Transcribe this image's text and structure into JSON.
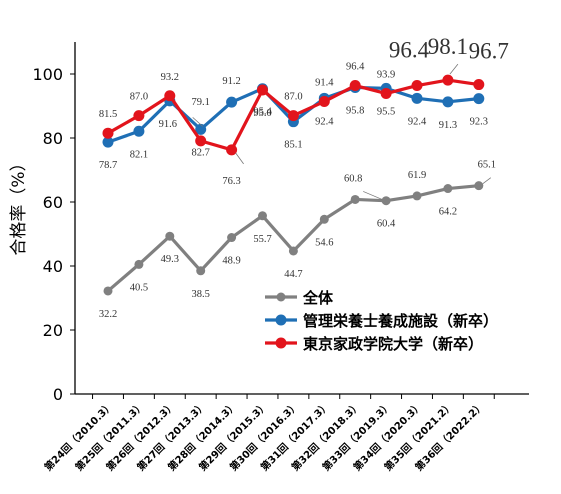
{
  "chart_data": {
    "type": "line",
    "ylabel": "合格率（%）",
    "ylim": [
      0,
      100
    ],
    "yticks": [
      0,
      20,
      40,
      60,
      80,
      100
    ],
    "grid": false,
    "legend_position": "bottom-right-inside",
    "categories": [
      "第24回（2010.3）",
      "第25回（2011.3）",
      "第26回（2012.3）",
      "第27回（2013.3）",
      "第28回（2014.3）",
      "第29回（2015.3）",
      "第30回（2016.3）",
      "第31回（2017.3）",
      "第32回（2018.3）",
      "第33回（2019.3）",
      "第34回（2020.3）",
      "第35回（2021.2）",
      "第36回（2022.2）"
    ],
    "series": [
      {
        "name": "全体",
        "color": "#808080",
        "values": [
          32.2,
          40.5,
          49.3,
          38.5,
          48.9,
          55.7,
          44.7,
          54.6,
          60.8,
          60.4,
          61.9,
          64.2,
          65.1
        ]
      },
      {
        "name": "管理栄養士養成施設（新卒）",
        "color": "#1f6fb5",
        "values": [
          78.7,
          82.1,
          91.6,
          82.7,
          91.2,
          95.4,
          85.1,
          92.4,
          95.8,
          95.5,
          92.4,
          91.3,
          92.3
        ]
      },
      {
        "name": "東京家政学院大学（新卒）",
        "color": "#e2141c",
        "values": [
          81.5,
          87.0,
          93.2,
          79.1,
          76.3,
          95.0,
          87.0,
          91.4,
          96.4,
          93.9,
          96.4,
          98.1,
          96.7
        ]
      }
    ],
    "data_labels": {
      "s0": [
        "32.2",
        "40.5",
        "49.3",
        "38.5",
        "48.9",
        "55.7",
        "44.7",
        "54.6",
        "60.8",
        "60.4",
        "61.9",
        "64.2",
        "65.1"
      ],
      "s1": [
        "78.7",
        "82.1",
        "91.6",
        "82.7",
        "91.2",
        "95.4",
        "85.1",
        "92.4",
        "95.8",
        "95.5",
        "92.4",
        "91.3",
        "92.3"
      ],
      "s2": [
        "81.5",
        "87.0",
        "93.2",
        "79.1",
        "76.3",
        "95.0",
        "87.0",
        "91.4",
        "96.4",
        "93.9",
        "96.4",
        "98.1",
        "96.7"
      ]
    }
  }
}
